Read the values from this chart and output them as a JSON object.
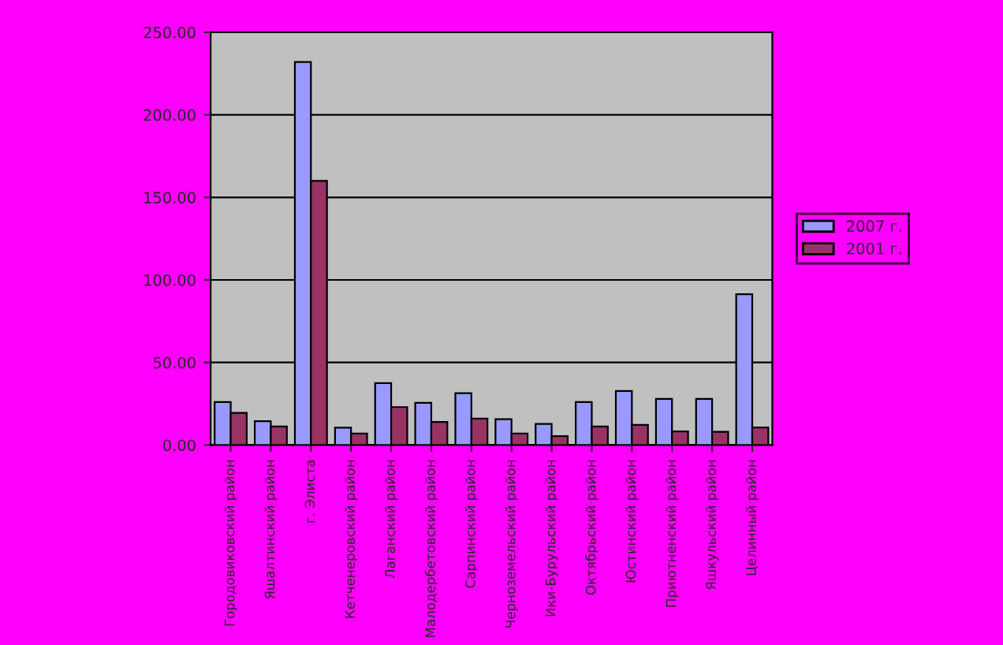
{
  "chart_data": {
    "type": "bar",
    "categories": [
      "Городовиковский район",
      "Яшалтинский район",
      "г. Элиста",
      "Кетченеровский район",
      "Лаганский район",
      "Малодербетовский район",
      "Сарпинский район",
      "Черноземельский район",
      "Ики-Бурульский район",
      "Октябрьский район",
      "Юстинский район",
      "Приютненский район",
      "Яшкульский район",
      "Целинный район"
    ],
    "series": [
      {
        "name": "2007 г.",
        "color": "#9999ff",
        "values": [
          26,
          14.5,
          232,
          10.5,
          37.5,
          25.6,
          31.4,
          15.7,
          12.8,
          26,
          32.7,
          28,
          28,
          91.3
        ]
      },
      {
        "name": "2001 г.",
        "color": "#993366",
        "values": [
          19.5,
          11.2,
          160,
          7,
          23,
          14,
          16,
          7,
          5.4,
          11.2,
          12.2,
          8.3,
          8,
          10.6
        ]
      }
    ],
    "ylim": [
      0,
      250
    ],
    "yticks": [
      {
        "value": 0,
        "label": "0.00"
      },
      {
        "value": 50,
        "label": "50.00"
      },
      {
        "value": 100,
        "label": "100.00"
      },
      {
        "value": 150,
        "label": "150.00"
      },
      {
        "value": 200,
        "label": "200.00"
      },
      {
        "value": 250,
        "label": "250.00"
      }
    ],
    "grid": "y",
    "legend": "right"
  }
}
